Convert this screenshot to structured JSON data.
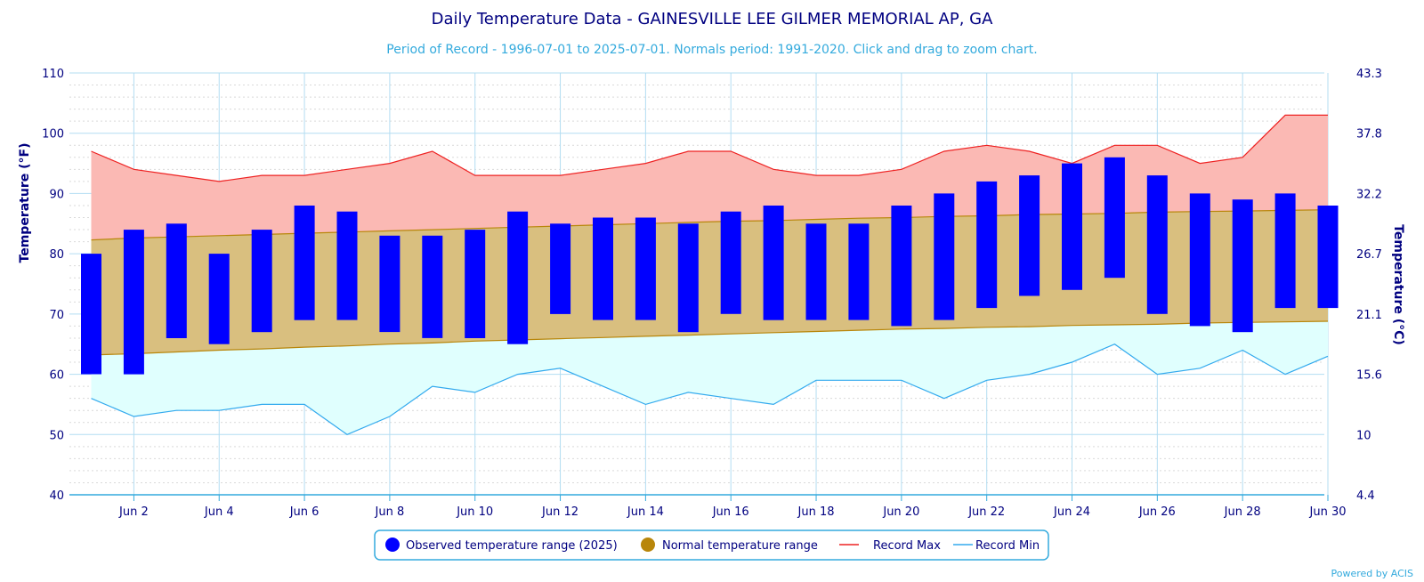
{
  "chart_data": {
    "type": "bar",
    "title": "Daily Temperature Data - GAINESVILLE LEE GILMER MEMORIAL AP, GA",
    "subtitle": "Period of Record - 1996-07-01 to 2025-07-01. Normals period: 1991-2020. Click and drag to zoom chart.",
    "ylabel": "Temperature (°F)",
    "y2label": "Temperature (°C)",
    "ylim": [
      40,
      110
    ],
    "y_ticks": [
      "40",
      "50",
      "60",
      "70",
      "80",
      "90",
      "100",
      "110"
    ],
    "y2_ticks": [
      "4.4",
      "10",
      "15.6",
      "21.1",
      "26.7",
      "32.2",
      "37.8",
      "43.3"
    ],
    "x_ticks": [
      "Jun 2",
      "Jun 4",
      "Jun 6",
      "Jun 8",
      "Jun 10",
      "Jun 12",
      "Jun 14",
      "Jun 16",
      "Jun 18",
      "Jun 20",
      "Jun 22",
      "Jun 24",
      "Jun 26",
      "Jun 28",
      "Jun 30"
    ],
    "x_tick_days": [
      2,
      4,
      6,
      8,
      10,
      12,
      14,
      16,
      18,
      20,
      22,
      24,
      26,
      28,
      30
    ],
    "days": [
      1,
      2,
      3,
      4,
      5,
      6,
      7,
      8,
      9,
      10,
      11,
      12,
      13,
      14,
      15,
      16,
      17,
      18,
      19,
      20,
      21,
      22,
      23,
      24,
      25,
      26,
      27,
      28,
      29,
      30
    ],
    "grid": true,
    "legend_position": "bottom-center",
    "series": [
      {
        "name": "Observed temperature range (2025)",
        "color": "#0000ff",
        "low": [
          60,
          60,
          66,
          65,
          67,
          69,
          69,
          67,
          66,
          66,
          65,
          70,
          69,
          69,
          67,
          70,
          69,
          69,
          69,
          68,
          69,
          71,
          73,
          74,
          76,
          70,
          68,
          67,
          71,
          71
        ],
        "high": [
          80,
          84,
          85,
          80,
          84,
          88,
          87,
          83,
          83,
          84,
          87,
          85,
          86,
          86,
          85,
          87,
          88,
          85,
          85,
          88,
          90,
          92,
          93,
          95,
          96,
          93,
          90,
          89,
          90,
          88
        ]
      },
      {
        "name": "Normal temperature range",
        "color": "#b8860b",
        "low": [
          63.2,
          63.4,
          63.7,
          64.0,
          64.2,
          64.5,
          64.7,
          65.0,
          65.2,
          65.5,
          65.7,
          65.9,
          66.1,
          66.3,
          66.5,
          66.7,
          66.9,
          67.1,
          67.3,
          67.5,
          67.6,
          67.8,
          67.9,
          68.1,
          68.2,
          68.3,
          68.5,
          68.6,
          68.7,
          68.8
        ],
        "high": [
          82.3,
          82.6,
          82.8,
          83.0,
          83.2,
          83.4,
          83.6,
          83.8,
          84.0,
          84.2,
          84.4,
          84.6,
          84.8,
          85.0,
          85.2,
          85.4,
          85.5,
          85.7,
          85.9,
          86.0,
          86.2,
          86.3,
          86.5,
          86.6,
          86.7,
          86.9,
          87.0,
          87.1,
          87.2,
          87.3
        ]
      },
      {
        "name": "Record Max",
        "color": "#ee2222",
        "fill": "#fbb9b4",
        "values": [
          97,
          94,
          93,
          92,
          93,
          93,
          94,
          95,
          97,
          93,
          93,
          93,
          94,
          95,
          97,
          97,
          94,
          93,
          93,
          94,
          97,
          98,
          97,
          95,
          98,
          98,
          95,
          96,
          103,
          103
        ]
      },
      {
        "name": "Record Min",
        "color": "#33aaee",
        "fill": "#e0fffe",
        "values": [
          56,
          53,
          54,
          54,
          55,
          55,
          50,
          53,
          58,
          57,
          60,
          61,
          58,
          55,
          57,
          56,
          55,
          59,
          59,
          59,
          56,
          59,
          60,
          62,
          65,
          60,
          61,
          64,
          60,
          63
        ]
      }
    ]
  },
  "credit": "Powered by ACIS"
}
